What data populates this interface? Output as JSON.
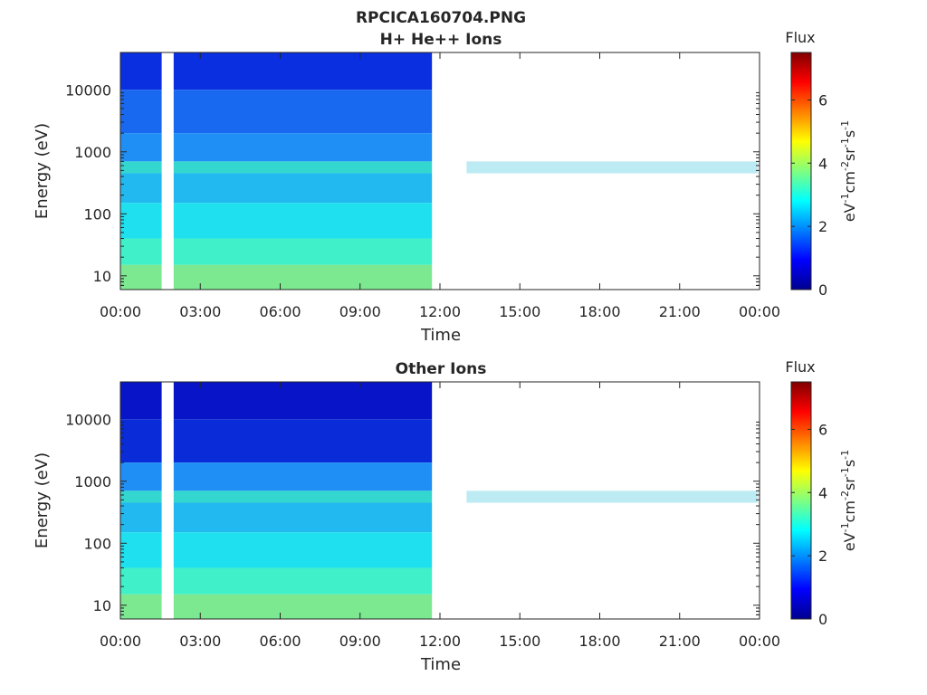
{
  "title": "RPCICA160704.PNG",
  "chart_data": [
    {
      "type": "heatmap",
      "title": "H+ He++ Ions",
      "xlabel": "Time",
      "ylabel": "Energy (eV)",
      "y_scale": "log",
      "ylim": [
        6,
        40000
      ],
      "xlim": [
        "00:00",
        "24:00"
      ],
      "x_tick_labels": [
        "00:00",
        "03:00",
        "06:00",
        "09:00",
        "12:00",
        "15:00",
        "18:00",
        "21:00",
        "00:00"
      ],
      "y_ticks": [
        10,
        100,
        1000,
        10000
      ],
      "y_tick_labels": [
        "10",
        "100",
        "1000",
        "10000"
      ],
      "data_gaps_hours": [
        [
          1.55,
          2.0
        ],
        [
          11.7,
          13.0
        ]
      ],
      "colorbar": {
        "label": "Flux",
        "units": [
          "eV",
          "-1",
          "cm",
          "-2",
          "sr",
          "-1",
          "s",
          "-1"
        ],
        "range": [
          0,
          7.5
        ],
        "tick_labels": [
          "0",
          "2",
          "4",
          "6"
        ],
        "colormap": "jet"
      }
    },
    {
      "type": "heatmap",
      "title": "Other Ions",
      "xlabel": "Time",
      "ylabel": "Energy (eV)",
      "y_scale": "log",
      "ylim": [
        6,
        40000
      ],
      "xlim": [
        "00:00",
        "24:00"
      ],
      "x_tick_labels": [
        "00:00",
        "03:00",
        "06:00",
        "09:00",
        "12:00",
        "15:00",
        "18:00",
        "21:00",
        "00:00"
      ],
      "y_ticks": [
        10,
        100,
        1000,
        10000
      ],
      "y_tick_labels": [
        "10",
        "100",
        "1000",
        "10000"
      ],
      "data_gaps_hours": [
        [
          1.55,
          2.0
        ],
        [
          11.7,
          13.0
        ]
      ],
      "colorbar": {
        "label": "Flux",
        "units": [
          "eV",
          "-1",
          "cm",
          "-2",
          "sr",
          "-1",
          "s",
          "-1"
        ],
        "range": [
          0,
          7.5
        ],
        "tick_labels": [
          "0",
          "2",
          "4",
          "6"
        ],
        "colormap": "jet"
      }
    }
  ]
}
